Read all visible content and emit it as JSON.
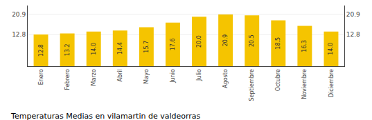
{
  "chart_data": {
    "type": "bar",
    "title": "Temperaturas Medias en vilamartin de valdeorras",
    "categories": [
      "Enero",
      "Febrero",
      "Marzo",
      "Abril",
      "Mayo",
      "Junio",
      "Julio",
      "Agosto",
      "Septiembre",
      "Octubre",
      "Noviembre",
      "Diciembre"
    ],
    "values": [
      12.8,
      13.2,
      14.0,
      14.4,
      15.7,
      17.6,
      20.0,
      20.9,
      20.5,
      18.5,
      16.3,
      14.0
    ],
    "value_labels": [
      "12.8",
      "13.2",
      "14.0",
      "14.4",
      "15.7",
      "17.6",
      "20.0",
      "20.9",
      "20.5",
      "18.5",
      "16.3",
      "14.0"
    ],
    "color": "#F5C400",
    "ylim": [
      0.0,
      24.5
    ],
    "yticks": [
      12.8,
      20.9
    ],
    "y2lim": [
      0.0,
      24.5
    ],
    "y2ticks": [
      12.8,
      20.9
    ],
    "grid": true,
    "data_labels": true
  }
}
